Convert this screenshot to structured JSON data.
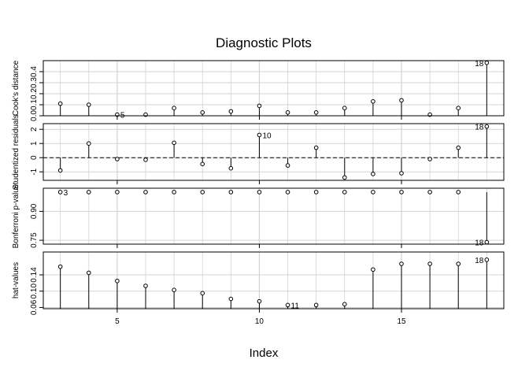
{
  "title": "Diagnostic Plots",
  "xlabel": "Index",
  "x_ticks": [
    5,
    10,
    15
  ],
  "chart_data": [
    {
      "type": "scatter",
      "style": "spikes",
      "ylabel": "Cook's distance",
      "y_ticks": [
        "0.0",
        "0.1",
        "0.2",
        "0.3",
        "0.4"
      ],
      "y_tick_values": [
        0.0,
        0.1,
        0.2,
        0.3,
        0.4
      ],
      "ylim": [
        0.0,
        0.5
      ],
      "baseline": 0,
      "reference_line": null,
      "x": [
        3,
        4,
        5,
        6,
        7,
        8,
        9,
        10,
        11,
        12,
        13,
        14,
        15,
        16,
        17,
        18
      ],
      "y": [
        0.11,
        0.1,
        0.01,
        0.01,
        0.07,
        0.03,
        0.04,
        0.09,
        0.03,
        0.03,
        0.07,
        0.13,
        0.14,
        0.01,
        0.07,
        0.48
      ],
      "point_labels": [
        {
          "x": 5,
          "text": "5"
        },
        {
          "x": 18,
          "text": "18"
        }
      ],
      "grid": true
    },
    {
      "type": "scatter",
      "style": "spikes",
      "ylabel": "Studentized residuals",
      "y_ticks": [
        "-1",
        "0",
        "1",
        "2"
      ],
      "y_tick_values": [
        -1,
        0,
        1,
        2
      ],
      "ylim": [
        -1.6,
        2.4
      ],
      "baseline": 0,
      "reference_line": 0,
      "x": [
        3,
        4,
        5,
        6,
        7,
        8,
        9,
        10,
        11,
        12,
        13,
        14,
        15,
        16,
        17,
        18
      ],
      "y": [
        -0.9,
        1.0,
        -0.1,
        -0.15,
        1.05,
        -0.45,
        -0.75,
        1.6,
        -0.55,
        0.7,
        -1.4,
        -1.15,
        -1.1,
        -0.1,
        0.7,
        2.2
      ],
      "point_labels": [
        {
          "x": 10,
          "text": "10"
        },
        {
          "x": 18,
          "text": "18"
        }
      ],
      "grid": true
    },
    {
      "type": "scatter",
      "style": "spikes",
      "ylabel": "Bonferroni p-value",
      "y_ticks": [
        "0.75",
        "0.90"
      ],
      "y_tick_values": [
        0.75,
        0.9
      ],
      "ylim": [
        0.73,
        1.02
      ],
      "baseline": 1.0,
      "reference_line": null,
      "x": [
        3,
        4,
        5,
        6,
        7,
        8,
        9,
        10,
        11,
        12,
        13,
        14,
        15,
        16,
        17,
        18
      ],
      "y": [
        1,
        1,
        1,
        1,
        1,
        1,
        1,
        1,
        1,
        1,
        1,
        1,
        1,
        1,
        1,
        0.74
      ],
      "point_labels": [
        {
          "x": 3,
          "text": "3"
        },
        {
          "x": 18,
          "text": "18"
        }
      ],
      "grid": true
    },
    {
      "type": "scatter",
      "style": "spikes",
      "ylabel": "hat-values",
      "y_ticks": [
        "0.06",
        "0.10",
        "0.14"
      ],
      "y_tick_values": [
        0.06,
        0.1,
        0.14
      ],
      "ylim": [
        0.057,
        0.196
      ],
      "baseline": 0.057,
      "reference_line": null,
      "x": [
        3,
        4,
        5,
        6,
        7,
        8,
        9,
        10,
        11,
        12,
        13,
        14,
        15,
        16,
        17,
        18
      ],
      "y": [
        0.16,
        0.145,
        0.125,
        0.113,
        0.103,
        0.095,
        0.081,
        0.075,
        0.066,
        0.066,
        0.068,
        0.153,
        0.167,
        0.167,
        0.167,
        0.177
      ],
      "point_labels": [
        {
          "x": 11,
          "text": "11"
        },
        {
          "x": 18,
          "text": "18"
        }
      ],
      "grid": true
    }
  ]
}
